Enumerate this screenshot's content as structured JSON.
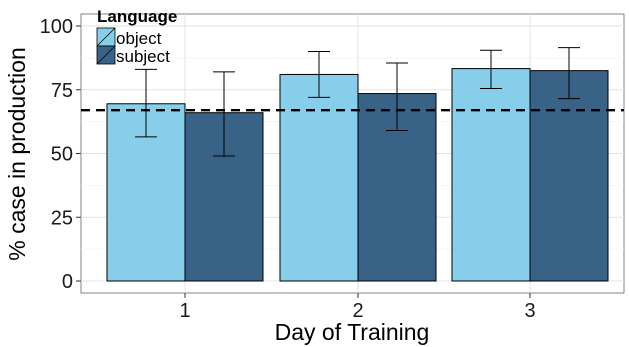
{
  "chart_data": {
    "type": "bar",
    "categories": [
      "1",
      "2",
      "3"
    ],
    "xlabel": "Day of Training",
    "ylabel": "% case in production",
    "ylim": [
      0,
      105
    ],
    "yticks": [
      0,
      25,
      50,
      75,
      100
    ],
    "grid": true,
    "legend_position": "top-left",
    "legend_title": "Language",
    "reference_line": {
      "value": 67,
      "style": "dashed"
    },
    "series": [
      {
        "name": "object",
        "color": "#87CEEB",
        "values": [
          69.5,
          81,
          83.3
        ],
        "error_low": [
          56.5,
          72,
          75.5
        ],
        "error_high": [
          83,
          90,
          90.5
        ]
      },
      {
        "name": "subject",
        "color": "#386387",
        "values": [
          66,
          73.5,
          82.5
        ],
        "error_low": [
          49,
          59,
          71.5
        ],
        "error_high": [
          82,
          85.5,
          91.5
        ]
      }
    ]
  }
}
